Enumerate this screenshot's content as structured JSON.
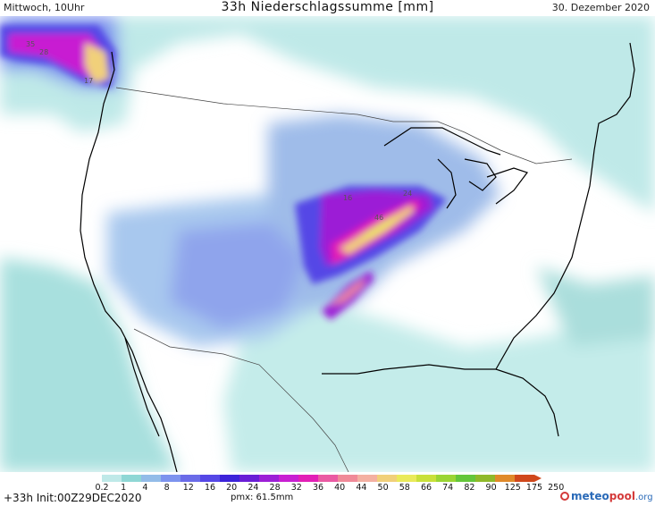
{
  "header": {
    "left": "Mittwoch, 10Uhr",
    "title": "33h Niederschlagssumme [mm]",
    "right": "30. Dezember 2020"
  },
  "map_labels": [
    {
      "id": "v35",
      "text": "35"
    },
    {
      "id": "v28",
      "text": "28"
    },
    {
      "id": "v17",
      "text": "17"
    },
    {
      "id": "v16",
      "text": "16"
    },
    {
      "id": "v24",
      "text": "24"
    },
    {
      "id": "v46",
      "text": "46"
    }
  ],
  "legend": {
    "ticks": [
      "0.2",
      "1",
      "4",
      "8",
      "12",
      "16",
      "20",
      "24",
      "28",
      "32",
      "36",
      "40",
      "44",
      "50",
      "58",
      "66",
      "74",
      "82",
      "90",
      "125",
      "175",
      "250"
    ],
    "colors": [
      "#bfe9e8",
      "#8fd7d5",
      "#93bce8",
      "#7d93ee",
      "#6a6be8",
      "#5547e6",
      "#3c23d9",
      "#6a1ed6",
      "#9c1fd6",
      "#c81fd2",
      "#e21fb6",
      "#ea5aa3",
      "#f08a98",
      "#f4b0a2",
      "#f1d07a",
      "#eaea5a",
      "#c9e03a",
      "#9ad534",
      "#64c63a",
      "#8fb92a",
      "#e08a2a",
      "#d0481c"
    ]
  },
  "footer": {
    "run": "+33h  Init:00Z29DEC2020",
    "pmax": "pmx: 61.5mm",
    "logo_main": "meteo",
    "logo_accent": "pool",
    "logo_suffix": ".org"
  }
}
